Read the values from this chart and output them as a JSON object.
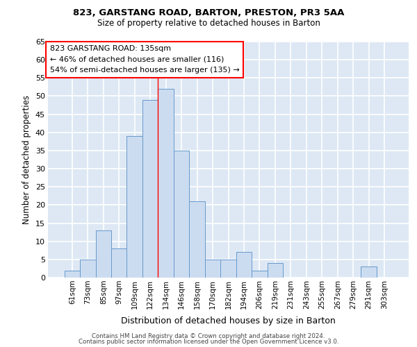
{
  "title_line1": "823, GARSTANG ROAD, BARTON, PRESTON, PR3 5AA",
  "title_line2": "Size of property relative to detached houses in Barton",
  "xlabel": "Distribution of detached houses by size in Barton",
  "ylabel": "Number of detached properties",
  "categories": [
    "61sqm",
    "73sqm",
    "85sqm",
    "97sqm",
    "109sqm",
    "122sqm",
    "134sqm",
    "146sqm",
    "158sqm",
    "170sqm",
    "182sqm",
    "194sqm",
    "206sqm",
    "219sqm",
    "231sqm",
    "243sqm",
    "255sqm",
    "267sqm",
    "279sqm",
    "291sqm",
    "303sqm"
  ],
  "values": [
    2,
    5,
    13,
    8,
    39,
    49,
    52,
    35,
    21,
    5,
    5,
    7,
    2,
    4,
    0,
    0,
    0,
    0,
    0,
    3,
    0
  ],
  "bar_color": "#ccdcf0",
  "bar_edge_color": "#6699cc",
  "background_color": "#dde8f4",
  "grid_color": "#ffffff",
  "ylim": [
    0,
    65
  ],
  "yticks": [
    0,
    5,
    10,
    15,
    20,
    25,
    30,
    35,
    40,
    45,
    50,
    55,
    60,
    65
  ],
  "vline_color": "red",
  "annotation_box_text": "823 GARSTANG ROAD: 135sqm\n← 46% of detached houses are smaller (116)\n54% of semi-detached houses are larger (135) →",
  "footer_line1": "Contains HM Land Registry data © Crown copyright and database right 2024.",
  "footer_line2": "Contains public sector information licensed under the Open Government Licence v3.0."
}
